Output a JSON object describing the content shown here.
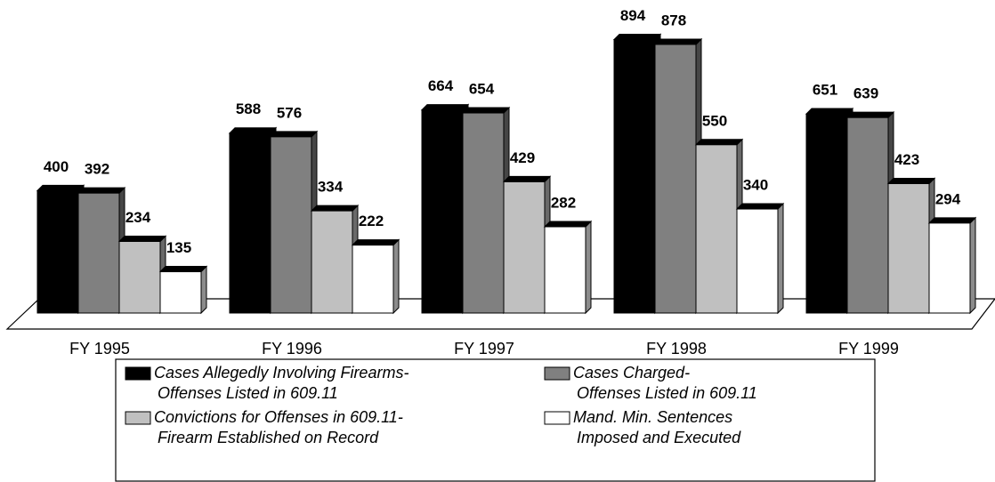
{
  "chart_data": {
    "type": "bar3d",
    "categories": [
      "FY 1995",
      "FY 1996",
      "FY 1997",
      "FY 1998",
      "FY 1999"
    ],
    "series": [
      {
        "name": "Cases Allegedly Involving Firearms-\nOffenses Listed in 609.11",
        "color": "#000000",
        "values": [
          400,
          588,
          664,
          894,
          651
        ]
      },
      {
        "name": "Cases Charged-\nOffenses Listed in 609.11",
        "color": "#808080",
        "values": [
          392,
          576,
          654,
          878,
          639
        ]
      },
      {
        "name": "Convictions for Offenses in 609.11-\nFirearm Established on Record",
        "color": "#c0c0c0",
        "values": [
          234,
          334,
          429,
          550,
          423
        ]
      },
      {
        "name": "Mand. Min. Sentences\nImposed and Executed",
        "color": "#ffffff",
        "values": [
          135,
          222,
          282,
          340,
          294
        ]
      }
    ]
  }
}
